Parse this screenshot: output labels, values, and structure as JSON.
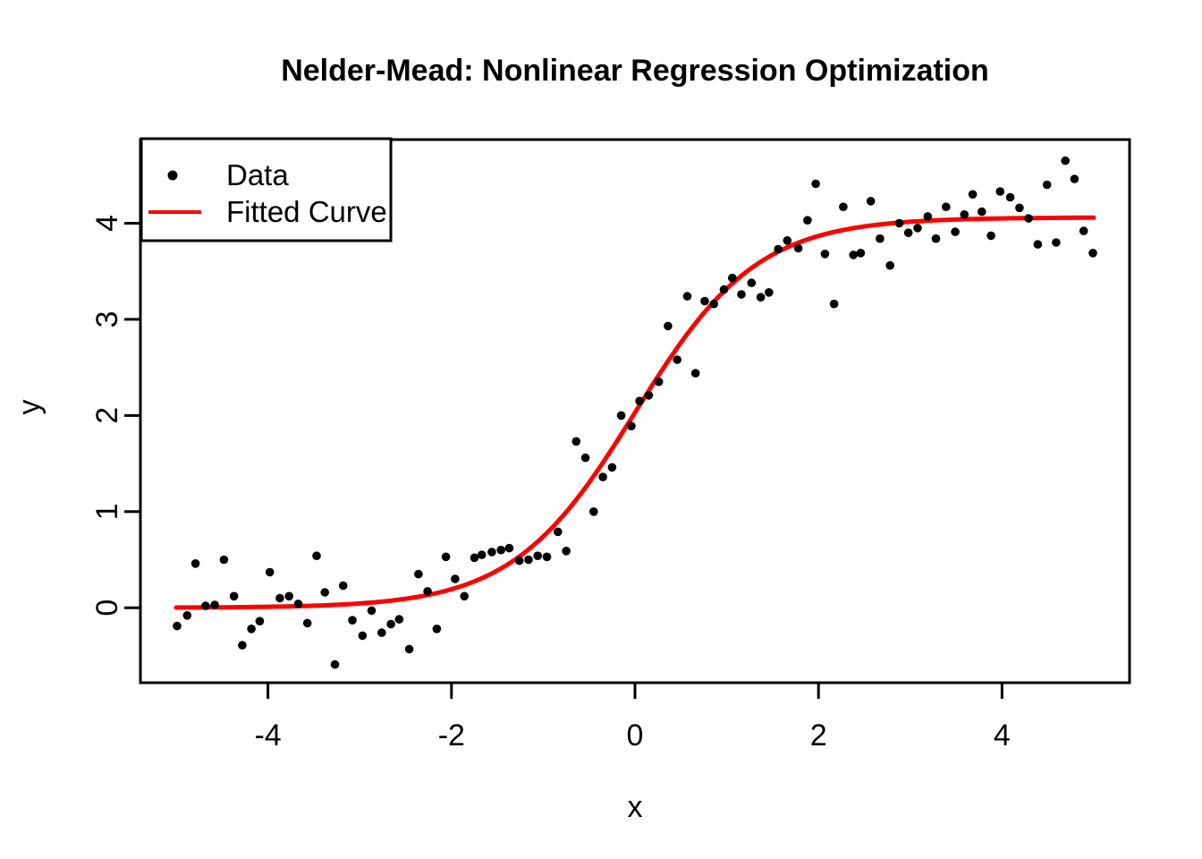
{
  "chart_data": {
    "type": "scatter",
    "title": "Nelder-Mead: Nonlinear Regression Optimization",
    "xlabel": "x",
    "ylabel": "y",
    "xlim": [
      -5.39,
      5.39
    ],
    "ylim": [
      -0.78,
      4.87
    ],
    "x_ticks": [
      -4,
      -2,
      0,
      2,
      4
    ],
    "y_ticks": [
      0,
      1,
      2,
      3,
      4
    ],
    "grid": false,
    "legend_position": "topleft",
    "series": [
      {
        "name": "Data",
        "type": "scatter",
        "color": "#000000",
        "points": [
          [
            -4.99,
            -0.19
          ],
          [
            -4.88,
            -0.08
          ],
          [
            -4.79,
            0.46
          ],
          [
            -4.68,
            0.02
          ],
          [
            -4.58,
            0.03
          ],
          [
            -4.48,
            0.5
          ],
          [
            -4.37,
            0.12
          ],
          [
            -4.28,
            -0.39
          ],
          [
            -4.18,
            -0.22
          ],
          [
            -4.09,
            -0.14
          ],
          [
            -3.98,
            0.37
          ],
          [
            -3.87,
            0.1
          ],
          [
            -3.77,
            0.12
          ],
          [
            -3.67,
            0.04
          ],
          [
            -3.57,
            -0.16
          ],
          [
            -3.47,
            0.54
          ],
          [
            -3.38,
            0.16
          ],
          [
            -3.27,
            -0.59
          ],
          [
            -3.18,
            0.23
          ],
          [
            -3.08,
            -0.13
          ],
          [
            -2.97,
            -0.29
          ],
          [
            -2.87,
            -0.03
          ],
          [
            -2.76,
            -0.26
          ],
          [
            -2.66,
            -0.17
          ],
          [
            -2.57,
            -0.12
          ],
          [
            -2.46,
            -0.43
          ],
          [
            -2.36,
            0.35
          ],
          [
            -2.26,
            0.17
          ],
          [
            -2.16,
            -0.22
          ],
          [
            -2.06,
            0.53
          ],
          [
            -1.96,
            0.3
          ],
          [
            -1.86,
            0.12
          ],
          [
            -1.75,
            0.52
          ],
          [
            -1.67,
            0.55
          ],
          [
            -1.56,
            0.58
          ],
          [
            -1.46,
            0.6
          ],
          [
            -1.37,
            0.62
          ],
          [
            -1.26,
            0.49
          ],
          [
            -1.16,
            0.5
          ],
          [
            -1.06,
            0.54
          ],
          [
            -0.96,
            0.53
          ],
          [
            -0.84,
            0.79
          ],
          [
            -0.75,
            0.59
          ],
          [
            -0.64,
            1.73
          ],
          [
            -0.54,
            1.56
          ],
          [
            -0.45,
            1.0
          ],
          [
            -0.35,
            1.36
          ],
          [
            -0.25,
            1.46
          ],
          [
            -0.15,
            2.0
          ],
          [
            -0.04,
            1.89
          ],
          [
            0.05,
            2.15
          ],
          [
            0.15,
            2.21
          ],
          [
            0.26,
            2.35
          ],
          [
            0.36,
            2.93
          ],
          [
            0.46,
            2.58
          ],
          [
            0.57,
            3.24
          ],
          [
            0.66,
            2.44
          ],
          [
            0.76,
            3.19
          ],
          [
            0.86,
            3.16
          ],
          [
            0.97,
            3.31
          ],
          [
            1.06,
            3.43
          ],
          [
            1.16,
            3.26
          ],
          [
            1.27,
            3.38
          ],
          [
            1.37,
            3.23
          ],
          [
            1.46,
            3.28
          ],
          [
            1.56,
            3.73
          ],
          [
            1.66,
            3.82
          ],
          [
            1.78,
            3.74
          ],
          [
            1.88,
            4.03
          ],
          [
            1.97,
            4.41
          ],
          [
            2.07,
            3.68
          ],
          [
            2.17,
            3.16
          ],
          [
            2.27,
            4.17
          ],
          [
            2.38,
            3.67
          ],
          [
            2.46,
            3.69
          ],
          [
            2.57,
            4.23
          ],
          [
            2.67,
            3.84
          ],
          [
            2.78,
            3.56
          ],
          [
            2.88,
            4.0
          ],
          [
            2.98,
            3.9
          ],
          [
            3.08,
            3.95
          ],
          [
            3.19,
            4.07
          ],
          [
            3.28,
            3.84
          ],
          [
            3.39,
            4.17
          ],
          [
            3.49,
            3.91
          ],
          [
            3.59,
            4.09
          ],
          [
            3.68,
            4.3
          ],
          [
            3.78,
            4.12
          ],
          [
            3.88,
            3.87
          ],
          [
            3.98,
            4.33
          ],
          [
            4.09,
            4.27
          ],
          [
            4.19,
            4.16
          ],
          [
            4.29,
            4.05
          ],
          [
            4.39,
            3.78
          ],
          [
            4.49,
            4.4
          ],
          [
            4.59,
            3.8
          ],
          [
            4.69,
            4.65
          ],
          [
            4.79,
            4.46
          ],
          [
            4.89,
            3.92
          ],
          [
            4.99,
            3.69
          ]
        ]
      },
      {
        "name": "Fitted Curve",
        "type": "line",
        "color": "#FF0000",
        "model": "logistic",
        "params": {
          "asymptote": 4.06,
          "rate": 1.5,
          "midpoint": 0.0
        },
        "x_range": [
          -5,
          5
        ]
      }
    ]
  },
  "colors": {
    "background": "#FFFFFF",
    "axis": "#000000",
    "data_points": "#000000",
    "fitted_curve": "#FF0000"
  }
}
